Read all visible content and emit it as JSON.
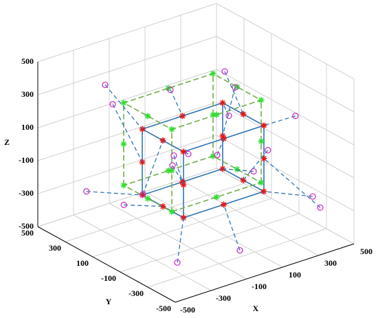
{
  "chart_data": {
    "type": "scatter3d",
    "xlabel": "X",
    "ylabel": "Y",
    "zlabel": "Z",
    "xlim": [
      -500,
      500
    ],
    "ylim": [
      -500,
      500
    ],
    "zlim": [
      -500,
      500
    ],
    "xticks": [
      -500,
      -300,
      -100,
      100,
      300,
      500
    ],
    "yticks": [
      -500,
      -300,
      -100,
      100,
      300,
      500
    ],
    "zticks": [
      -500,
      -300,
      -100,
      100,
      300,
      500
    ],
    "grid": true,
    "series": [
      {
        "kind": "line",
        "color": "#2e75b6",
        "linestyle": "solid",
        "x": [
          -300,
          150,
          150,
          -300,
          -300,
          -300,
          150,
          150,
          -300,
          -300,
          null,
          150,
          150,
          null,
          150,
          150,
          null,
          -300,
          -300
        ],
        "y": [
          -300,
          -300,
          0,
          0,
          -300,
          -300,
          -300,
          0,
          0,
          -300,
          null,
          -300,
          -300,
          null,
          0,
          0,
          null,
          0,
          0
        ],
        "z": [
          -150,
          -150,
          -150,
          -150,
          -150,
          250,
          250,
          250,
          250,
          250,
          null,
          -150,
          250,
          null,
          -150,
          250,
          null,
          -150,
          250
        ]
      },
      {
        "kind": "line",
        "color": "#70ad47",
        "linestyle": "dashed",
        "x": [
          -250,
          250,
          250,
          -250,
          -250,
          -250,
          250,
          250,
          -250,
          -250,
          null,
          250,
          250,
          null,
          250,
          250,
          null,
          -250,
          -250
        ],
        "y": [
          -150,
          -150,
          200,
          200,
          -150,
          -150,
          -150,
          200,
          200,
          -150,
          null,
          -150,
          -150,
          null,
          200,
          200,
          null,
          200,
          200
        ],
        "z": [
          -200,
          -200,
          -200,
          -200,
          -200,
          300,
          300,
          300,
          300,
          300,
          null,
          -200,
          300,
          null,
          -200,
          300,
          null,
          -200,
          300
        ]
      },
      {
        "kind": "marker",
        "marker": "star",
        "color": "#33dd33",
        "x": [
          -250,
          250,
          250,
          -250,
          -250,
          250,
          250,
          -250,
          0,
          250,
          0,
          -250,
          0,
          250,
          0,
          -250,
          -250,
          250,
          250,
          -250
        ],
        "y": [
          -150,
          -150,
          200,
          200,
          -150,
          -150,
          200,
          200,
          -150,
          25,
          200,
          25,
          -150,
          25,
          200,
          25,
          -150,
          -150,
          200,
          200
        ],
        "z": [
          -200,
          -200,
          -200,
          -200,
          300,
          300,
          300,
          300,
          -200,
          -200,
          -200,
          -200,
          300,
          300,
          300,
          300,
          50,
          50,
          50,
          50
        ]
      },
      {
        "kind": "marker",
        "marker": "star",
        "color": "#ee1111",
        "x": [
          -300,
          150,
          150,
          -300,
          -300,
          150,
          150,
          -300,
          -75,
          150,
          -75,
          -300,
          -75,
          150,
          -75,
          -300,
          -300,
          150,
          150,
          -300
        ],
        "y": [
          -300,
          -300,
          0,
          0,
          -300,
          -300,
          0,
          0,
          -300,
          -150,
          0,
          -150,
          -300,
          -150,
          0,
          -150,
          -300,
          -300,
          0,
          0
        ],
        "z": [
          -150,
          -150,
          -150,
          -150,
          250,
          250,
          250,
          250,
          -150,
          -150,
          -150,
          -150,
          250,
          250,
          250,
          250,
          50,
          50,
          50,
          50
        ]
      },
      {
        "kind": "marker",
        "marker": "circle",
        "color": "#cc33cc",
        "link_color": "#2e75b6",
        "x": [
          -450,
          500,
          400,
          -420,
          -350,
          480,
          300,
          -200,
          -100,
          480,
          100,
          -480,
          -150,
          200,
          50,
          -450,
          -200,
          350,
          450,
          -350
        ],
        "y": [
          -450,
          -200,
          100,
          250,
          -400,
          -100,
          150,
          400,
          -450,
          100,
          300,
          -100,
          -350,
          50,
          250,
          -200,
          -100,
          -450,
          300,
          150
        ],
        "z": [
          -300,
          -350,
          -300,
          -200,
          300,
          100,
          50,
          300,
          -350,
          -200,
          -250,
          -100,
          200,
          400,
          250,
          0,
          100,
          -250,
          100,
          350
        ]
      }
    ]
  }
}
